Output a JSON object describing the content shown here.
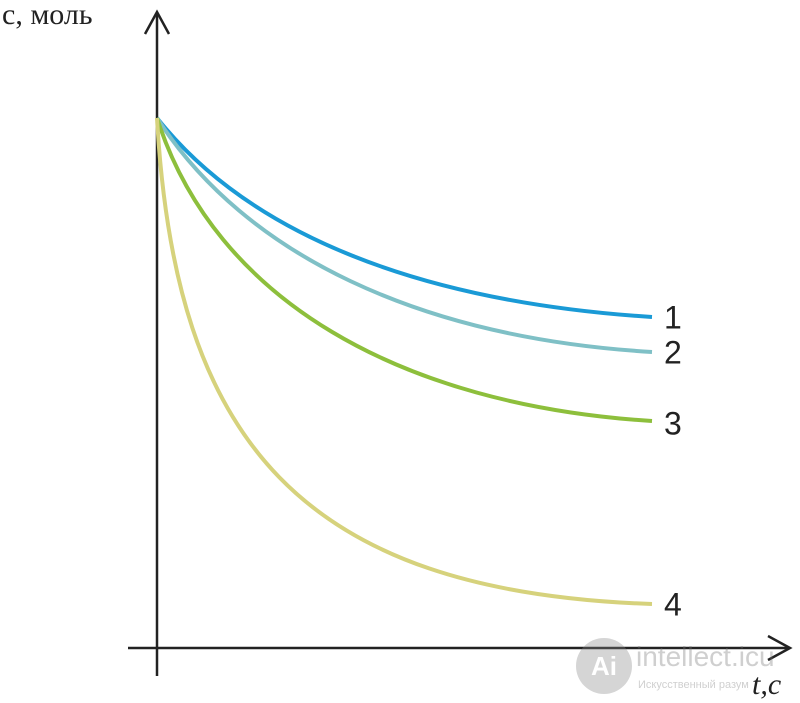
{
  "axes": {
    "y_label": "c, моль",
    "x_label": "t,c"
  },
  "curves": [
    {
      "label": "1"
    },
    {
      "label": "2"
    },
    {
      "label": "3"
    },
    {
      "label": "4"
    }
  ],
  "watermark": {
    "title": "intellect.icu",
    "subtitle": "Искусственный разум"
  }
}
